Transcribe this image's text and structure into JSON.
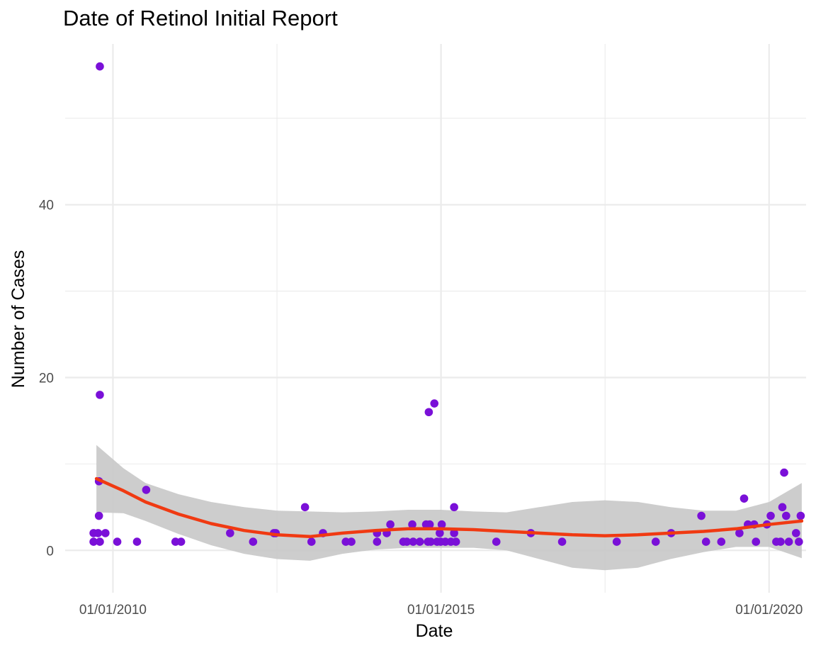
{
  "chart_data": {
    "type": "scatter",
    "title": "Date of Retinol Initial Report",
    "xlabel": "Date",
    "ylabel": "Number of Cases",
    "x_ticks": [
      {
        "date": "2010-01-01",
        "label": "01/01/2010"
      },
      {
        "date": "2015-01-01",
        "label": "01/01/2015"
      },
      {
        "date": "2020-01-01",
        "label": "01/01/2020"
      }
    ],
    "y_ticks": [
      0,
      20,
      40
    ],
    "ylim": [
      -4.9,
      58.6
    ],
    "xlim": [
      "2009-04-10",
      "2020-07-25"
    ],
    "grid": true,
    "colors": {
      "points": "#7a10d8",
      "smooth_line": "#f03a12",
      "confidence_band": "#c8c8c8",
      "grid": "#ebebeb"
    },
    "series": [
      {
        "points": [
          {
            "x": "2009-09-15",
            "y": 2
          },
          {
            "x": "2009-09-15",
            "y": 1
          },
          {
            "x": "2009-10-20",
            "y": 56
          },
          {
            "x": "2009-10-20",
            "y": 18
          },
          {
            "x": "2009-10-15",
            "y": 8
          },
          {
            "x": "2009-10-15",
            "y": 4
          },
          {
            "x": "2009-10-10",
            "y": 2
          },
          {
            "x": "2009-10-20",
            "y": 1
          },
          {
            "x": "2009-11-20",
            "y": 2
          },
          {
            "x": "2010-01-25",
            "y": 1
          },
          {
            "x": "2010-05-15",
            "y": 1
          },
          {
            "x": "2010-07-05",
            "y": 7
          },
          {
            "x": "2010-12-15",
            "y": 1
          },
          {
            "x": "2011-01-15",
            "y": 1
          },
          {
            "x": "2011-10-15",
            "y": 2
          },
          {
            "x": "2012-02-20",
            "y": 1
          },
          {
            "x": "2012-06-15",
            "y": 2
          },
          {
            "x": "2012-06-25",
            "y": 2
          },
          {
            "x": "2012-12-05",
            "y": 5
          },
          {
            "x": "2013-01-10",
            "y": 1
          },
          {
            "x": "2013-03-15",
            "y": 2
          },
          {
            "x": "2013-07-20",
            "y": 1
          },
          {
            "x": "2013-08-20",
            "y": 1
          },
          {
            "x": "2014-01-10",
            "y": 1
          },
          {
            "x": "2014-01-10",
            "y": 2
          },
          {
            "x": "2014-03-05",
            "y": 2
          },
          {
            "x": "2014-03-25",
            "y": 3
          },
          {
            "x": "2014-06-05",
            "y": 1
          },
          {
            "x": "2014-06-25",
            "y": 1
          },
          {
            "x": "2014-07-25",
            "y": 3
          },
          {
            "x": "2014-07-30",
            "y": 1
          },
          {
            "x": "2014-09-05",
            "y": 1
          },
          {
            "x": "2014-10-10",
            "y": 3
          },
          {
            "x": "2014-10-20",
            "y": 1
          },
          {
            "x": "2014-10-25",
            "y": 16
          },
          {
            "x": "2014-10-30",
            "y": 3
          },
          {
            "x": "2014-11-05",
            "y": 1
          },
          {
            "x": "2014-11-25",
            "y": 17
          },
          {
            "x": "2014-12-10",
            "y": 1
          },
          {
            "x": "2014-12-25",
            "y": 2
          },
          {
            "x": "2014-12-30",
            "y": 1
          },
          {
            "x": "2015-01-05",
            "y": 3
          },
          {
            "x": "2015-01-25",
            "y": 1
          },
          {
            "x": "2015-02-25",
            "y": 1
          },
          {
            "x": "2015-03-15",
            "y": 2
          },
          {
            "x": "2015-03-15",
            "y": 5
          },
          {
            "x": "2015-03-25",
            "y": 1
          },
          {
            "x": "2015-11-05",
            "y": 1
          },
          {
            "x": "2016-05-15",
            "y": 2
          },
          {
            "x": "2016-11-05",
            "y": 1
          },
          {
            "x": "2017-09-05",
            "y": 1
          },
          {
            "x": "2019-01-15",
            "y": 1
          },
          {
            "x": "2018-04-10",
            "y": 1
          },
          {
            "x": "2018-07-05",
            "y": 2
          },
          {
            "x": "2018-12-20",
            "y": 4
          },
          {
            "x": "2019-04-10",
            "y": 1
          },
          {
            "x": "2019-07-20",
            "y": 2
          },
          {
            "x": "2019-08-15",
            "y": 6
          },
          {
            "x": "2019-09-05",
            "y": 3
          },
          {
            "x": "2019-10-10",
            "y": 3
          },
          {
            "x": "2019-10-20",
            "y": 1
          },
          {
            "x": "2019-12-20",
            "y": 3
          },
          {
            "x": "2020-01-10",
            "y": 4
          },
          {
            "x": "2020-02-10",
            "y": 1
          },
          {
            "x": "2020-03-05",
            "y": 1
          },
          {
            "x": "2020-03-15",
            "y": 5
          },
          {
            "x": "2020-03-25",
            "y": 9
          },
          {
            "x": "2020-04-05",
            "y": 4
          },
          {
            "x": "2020-04-20",
            "y": 1
          },
          {
            "x": "2020-05-30",
            "y": 2
          },
          {
            "x": "2020-06-15",
            "y": 1
          },
          {
            "x": "2020-06-25",
            "y": 4
          }
        ]
      }
    ],
    "smooth": {
      "line": [
        {
          "x": "2009-10-01",
          "y": 8.3
        },
        {
          "x": "2010-03-01",
          "y": 6.9
        },
        {
          "x": "2010-07-01",
          "y": 5.6
        },
        {
          "x": "2011-01-01",
          "y": 4.2
        },
        {
          "x": "2011-07-01",
          "y": 3.1
        },
        {
          "x": "2012-01-01",
          "y": 2.3
        },
        {
          "x": "2012-07-01",
          "y": 1.8
        },
        {
          "x": "2013-01-01",
          "y": 1.6
        },
        {
          "x": "2013-07-01",
          "y": 2.0
        },
        {
          "x": "2014-01-01",
          "y": 2.3
        },
        {
          "x": "2014-07-01",
          "y": 2.5
        },
        {
          "x": "2015-01-01",
          "y": 2.5
        },
        {
          "x": "2015-07-01",
          "y": 2.4
        },
        {
          "x": "2016-01-01",
          "y": 2.2
        },
        {
          "x": "2016-07-01",
          "y": 2.0
        },
        {
          "x": "2017-01-01",
          "y": 1.8
        },
        {
          "x": "2017-07-01",
          "y": 1.7
        },
        {
          "x": "2018-01-01",
          "y": 1.8
        },
        {
          "x": "2018-07-01",
          "y": 2.0
        },
        {
          "x": "2019-01-01",
          "y": 2.2
        },
        {
          "x": "2019-07-01",
          "y": 2.5
        },
        {
          "x": "2020-01-01",
          "y": 3.0
        },
        {
          "x": "2020-07-01",
          "y": 3.4
        }
      ],
      "upper": [
        {
          "x": "2009-10-01",
          "y": 12.2
        },
        {
          "x": "2010-03-01",
          "y": 9.5
        },
        {
          "x": "2010-07-01",
          "y": 7.8
        },
        {
          "x": "2011-01-01",
          "y": 6.5
        },
        {
          "x": "2011-07-01",
          "y": 5.6
        },
        {
          "x": "2012-01-01",
          "y": 5.0
        },
        {
          "x": "2012-07-01",
          "y": 4.6
        },
        {
          "x": "2013-01-01",
          "y": 4.5
        },
        {
          "x": "2013-07-01",
          "y": 4.4
        },
        {
          "x": "2014-01-01",
          "y": 4.5
        },
        {
          "x": "2014-07-01",
          "y": 4.7
        },
        {
          "x": "2015-01-01",
          "y": 4.7
        },
        {
          "x": "2015-07-01",
          "y": 4.5
        },
        {
          "x": "2016-01-01",
          "y": 4.4
        },
        {
          "x": "2016-07-01",
          "y": 5.0
        },
        {
          "x": "2017-01-01",
          "y": 5.6
        },
        {
          "x": "2017-07-01",
          "y": 5.8
        },
        {
          "x": "2018-01-01",
          "y": 5.6
        },
        {
          "x": "2018-07-01",
          "y": 5.0
        },
        {
          "x": "2019-01-01",
          "y": 4.6
        },
        {
          "x": "2019-07-01",
          "y": 4.6
        },
        {
          "x": "2020-01-01",
          "y": 5.6
        },
        {
          "x": "2020-07-01",
          "y": 7.8
        }
      ],
      "lower": [
        {
          "x": "2009-10-01",
          "y": 4.4
        },
        {
          "x": "2010-03-01",
          "y": 4.3
        },
        {
          "x": "2010-07-01",
          "y": 3.4
        },
        {
          "x": "2011-01-01",
          "y": 1.9
        },
        {
          "x": "2011-07-01",
          "y": 0.6
        },
        {
          "x": "2012-01-01",
          "y": -0.4
        },
        {
          "x": "2012-07-01",
          "y": -1.0
        },
        {
          "x": "2013-01-01",
          "y": -1.2
        },
        {
          "x": "2013-07-01",
          "y": -0.4
        },
        {
          "x": "2014-01-01",
          "y": 0.1
        },
        {
          "x": "2014-07-01",
          "y": 0.3
        },
        {
          "x": "2015-01-01",
          "y": 0.3
        },
        {
          "x": "2015-07-01",
          "y": 0.3
        },
        {
          "x": "2016-01-01",
          "y": 0.0
        },
        {
          "x": "2016-07-01",
          "y": -1.0
        },
        {
          "x": "2017-01-01",
          "y": -2.0
        },
        {
          "x": "2017-07-01",
          "y": -2.3
        },
        {
          "x": "2018-01-01",
          "y": -2.0
        },
        {
          "x": "2018-07-01",
          "y": -1.0
        },
        {
          "x": "2019-01-01",
          "y": -0.2
        },
        {
          "x": "2019-07-01",
          "y": 0.4
        },
        {
          "x": "2020-01-01",
          "y": 0.4
        },
        {
          "x": "2020-07-01",
          "y": -0.9
        }
      ]
    }
  }
}
